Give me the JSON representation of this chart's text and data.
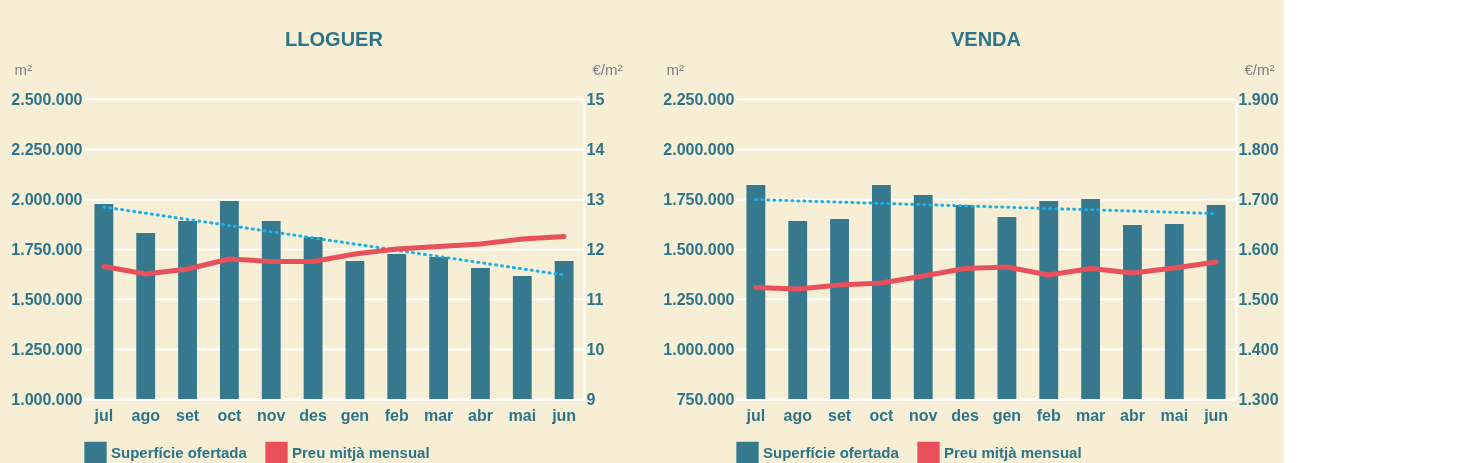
{
  "chart_data": [
    {
      "type": "bar",
      "title": "LLOGUER",
      "ylabel": "m²",
      "y2label": "€/m²",
      "categories": [
        "jul",
        "ago",
        "set",
        "oct",
        "nov",
        "des",
        "gen",
        "feb",
        "mar",
        "abr",
        "mai",
        "jun"
      ],
      "series": [
        {
          "name": "Superfície ofertada",
          "color": "#36798f",
          "values": [
            1975000,
            1830000,
            1890000,
            1990000,
            1890000,
            1810000,
            1690000,
            1725000,
            1710000,
            1655000,
            1615000,
            1690000
          ]
        },
        {
          "name": "Preu mitjà mensual",
          "type": "line",
          "axis": "y2",
          "color": "#e8505b",
          "values": [
            11.65,
            11.5,
            11.6,
            11.8,
            11.75,
            11.75,
            11.9,
            12.0,
            12.05,
            12.1,
            12.2,
            12.25
          ]
        },
        {
          "type": "line",
          "line_style": "dotted",
          "color": "#1ab0e8",
          "x": [
            "jul",
            "jun"
          ],
          "values": [
            1960000,
            1620000
          ]
        }
      ],
      "ylim": [
        1000000,
        2500000
      ],
      "yticks": [
        {
          "value": 1000000,
          "label": "1.000.000"
        },
        {
          "value": 1250000,
          "label": "1.250.000"
        },
        {
          "value": 1500000,
          "label": "1.500.000"
        },
        {
          "value": 1750000,
          "label": "1.750.000"
        },
        {
          "value": 2000000,
          "label": "2.000.000"
        },
        {
          "value": 2250000,
          "label": "2.250.000"
        },
        {
          "value": 2500000,
          "label": "2.500.000"
        }
      ],
      "y2lim": [
        9,
        15
      ],
      "y2ticks": [
        9,
        10,
        11,
        12,
        13,
        14,
        15
      ],
      "grid": "y",
      "legend": "bottom"
    },
    {
      "type": "bar",
      "title": "VENDA",
      "ylabel": "m²",
      "y2label": "€/m²",
      "categories": [
        "jul",
        "ago",
        "set",
        "oct",
        "nov",
        "des",
        "gen",
        "feb",
        "mar",
        "abr",
        "mai",
        "jun"
      ],
      "series": [
        {
          "name": "Superfície ofertada",
          "color": "#36798f",
          "values": [
            1820000,
            1640000,
            1650000,
            1820000,
            1770000,
            1720000,
            1660000,
            1740000,
            1750000,
            1620000,
            1625000,
            1720000
          ]
        },
        {
          "name": "Preu mitjà mensual",
          "type": "line",
          "axis": "y2",
          "color": "#e8505b",
          "values": [
            1523,
            1520,
            1528,
            1532,
            1546,
            1561,
            1564,
            1548,
            1561,
            1552,
            1562,
            1574
          ]
        },
        {
          "type": "line",
          "line_style": "dotted",
          "color": "#1ab0e8",
          "x": [
            "jul",
            "jun"
          ],
          "values": [
            1747000,
            1677000
          ]
        }
      ],
      "ylim": [
        750000,
        2250000
      ],
      "yticks": [
        {
          "value": 750000,
          "label": "750.000"
        },
        {
          "value": 1000000,
          "label": "1.000.000"
        },
        {
          "value": 1250000,
          "label": "1.250.000"
        },
        {
          "value": 1500000,
          "label": "1.500.000"
        },
        {
          "value": 1750000,
          "label": "1.750.000"
        },
        {
          "value": 2000000,
          "label": "2.000.000"
        },
        {
          "value": 2250000,
          "label": "2.250.000"
        }
      ],
      "y2lim": [
        1300,
        1900
      ],
      "y2ticks": [
        {
          "value": 1300,
          "label": "1.300"
        },
        {
          "value": 1400,
          "label": "1.400"
        },
        {
          "value": 1500,
          "label": "1.500"
        },
        {
          "value": 1600,
          "label": "1.600"
        },
        {
          "value": 1700,
          "label": "1.700"
        },
        {
          "value": 1800,
          "label": "1.800"
        },
        {
          "value": 1900,
          "label": "1.900"
        }
      ],
      "grid": "y",
      "legend": "bottom"
    }
  ]
}
